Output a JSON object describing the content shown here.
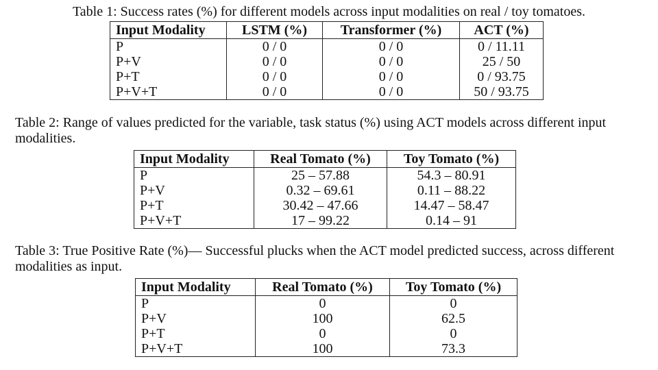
{
  "table1": {
    "caption": "Table 1: Success rates (%) for different models across input modalities on real / toy tomatoes.",
    "headers": [
      "Input Modality",
      "LSTM (%)",
      "Transformer (%)",
      "ACT (%)"
    ],
    "rows": [
      [
        "P",
        "0 / 0",
        "0 / 0",
        "0 / 11.11"
      ],
      [
        "P+V",
        "0 / 0",
        "0 / 0",
        "25 / 50"
      ],
      [
        "P+T",
        "0 / 0",
        "0 / 0",
        "0 / 93.75"
      ],
      [
        "P+V+T",
        "0 / 0",
        "0 / 0",
        "50 / 93.75"
      ]
    ]
  },
  "table2": {
    "caption": "Table 2: Range of values predicted for the variable, task status (%) using ACT models across different input modalities.",
    "headers": [
      "Input Modality",
      "Real Tomato (%)",
      "Toy Tomato (%)"
    ],
    "rows": [
      [
        "P",
        "25 – 57.88",
        "54.3 – 80.91"
      ],
      [
        "P+V",
        "0.32 – 69.61",
        "0.11 – 88.22"
      ],
      [
        "P+T",
        "30.42 – 47.66",
        "14.47 – 58.47"
      ],
      [
        "P+V+T",
        "17 – 99.22",
        "0.14 – 91"
      ]
    ]
  },
  "table3": {
    "caption": "Table 3: True Positive Rate (%)— Successful plucks when the ACT model predicted success, across different modalities as input.",
    "headers": [
      "Input Modality",
      "Real Tomato (%)",
      "Toy Tomato (%)"
    ],
    "rows": [
      [
        "P",
        "0",
        "0"
      ],
      [
        "P+V",
        "100",
        "62.5"
      ],
      [
        "P+T",
        "0",
        "0"
      ],
      [
        "P+V+T",
        "100",
        "73.3"
      ]
    ]
  }
}
